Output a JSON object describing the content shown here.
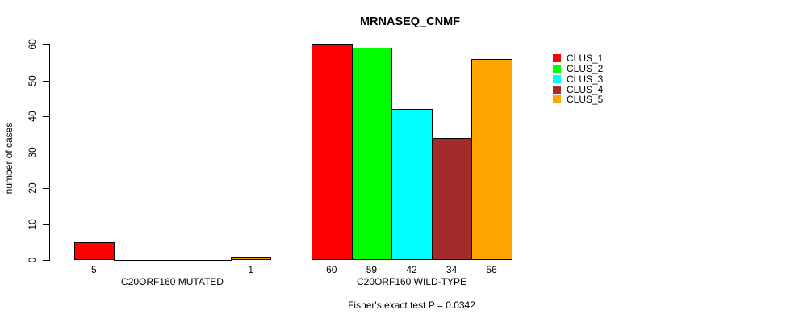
{
  "chart_data": {
    "type": "bar",
    "title": "MRNASEQ_CNMF",
    "ylabel": "number of cases",
    "annotation": "Fisher's exact test P = 0.0342",
    "ylim": [
      0,
      60
    ],
    "yticks": [
      0,
      10,
      20,
      30,
      40,
      50,
      60
    ],
    "grid": false,
    "legend_position": "right",
    "series_names": [
      "CLUS_1",
      "CLUS_2",
      "CLUS_3",
      "CLUS_4",
      "CLUS_5"
    ],
    "series_colors": [
      "#FF0000",
      "#00FF00",
      "#00FFFF",
      "#A52A2A",
      "#FFA500"
    ],
    "groups": [
      {
        "label": "C20ORF160 MUTATED",
        "values": [
          5,
          0,
          0,
          0,
          1
        ]
      },
      {
        "label": "C20ORF160 WILD-TYPE",
        "values": [
          60,
          59,
          42,
          34,
          56
        ]
      }
    ],
    "bar_value_labels_shown": true,
    "colors": {
      "background": "#ffffff",
      "axis": "#000000",
      "text": "#000000"
    }
  }
}
